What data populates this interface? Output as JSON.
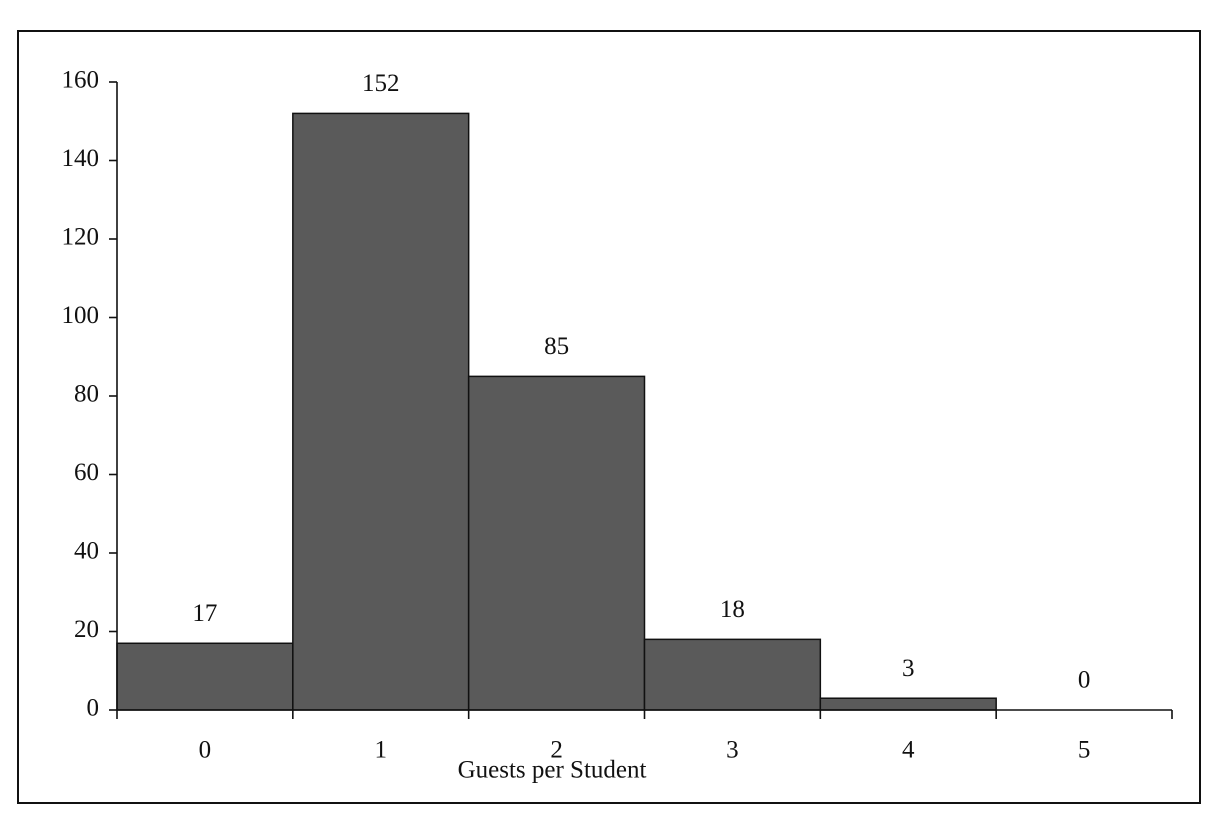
{
  "chart_data": {
    "type": "bar",
    "x_label": "Guests per Student",
    "categories": [
      "0",
      "1",
      "2",
      "3",
      "4",
      "5"
    ],
    "values": [
      17,
      152,
      85,
      18,
      3,
      0
    ],
    "color": "#5a5a5a",
    "ylim": [
      0,
      160
    ],
    "yticks": [
      0,
      20,
      40,
      60,
      80,
      100,
      120,
      140,
      160
    ],
    "grid": false
  }
}
